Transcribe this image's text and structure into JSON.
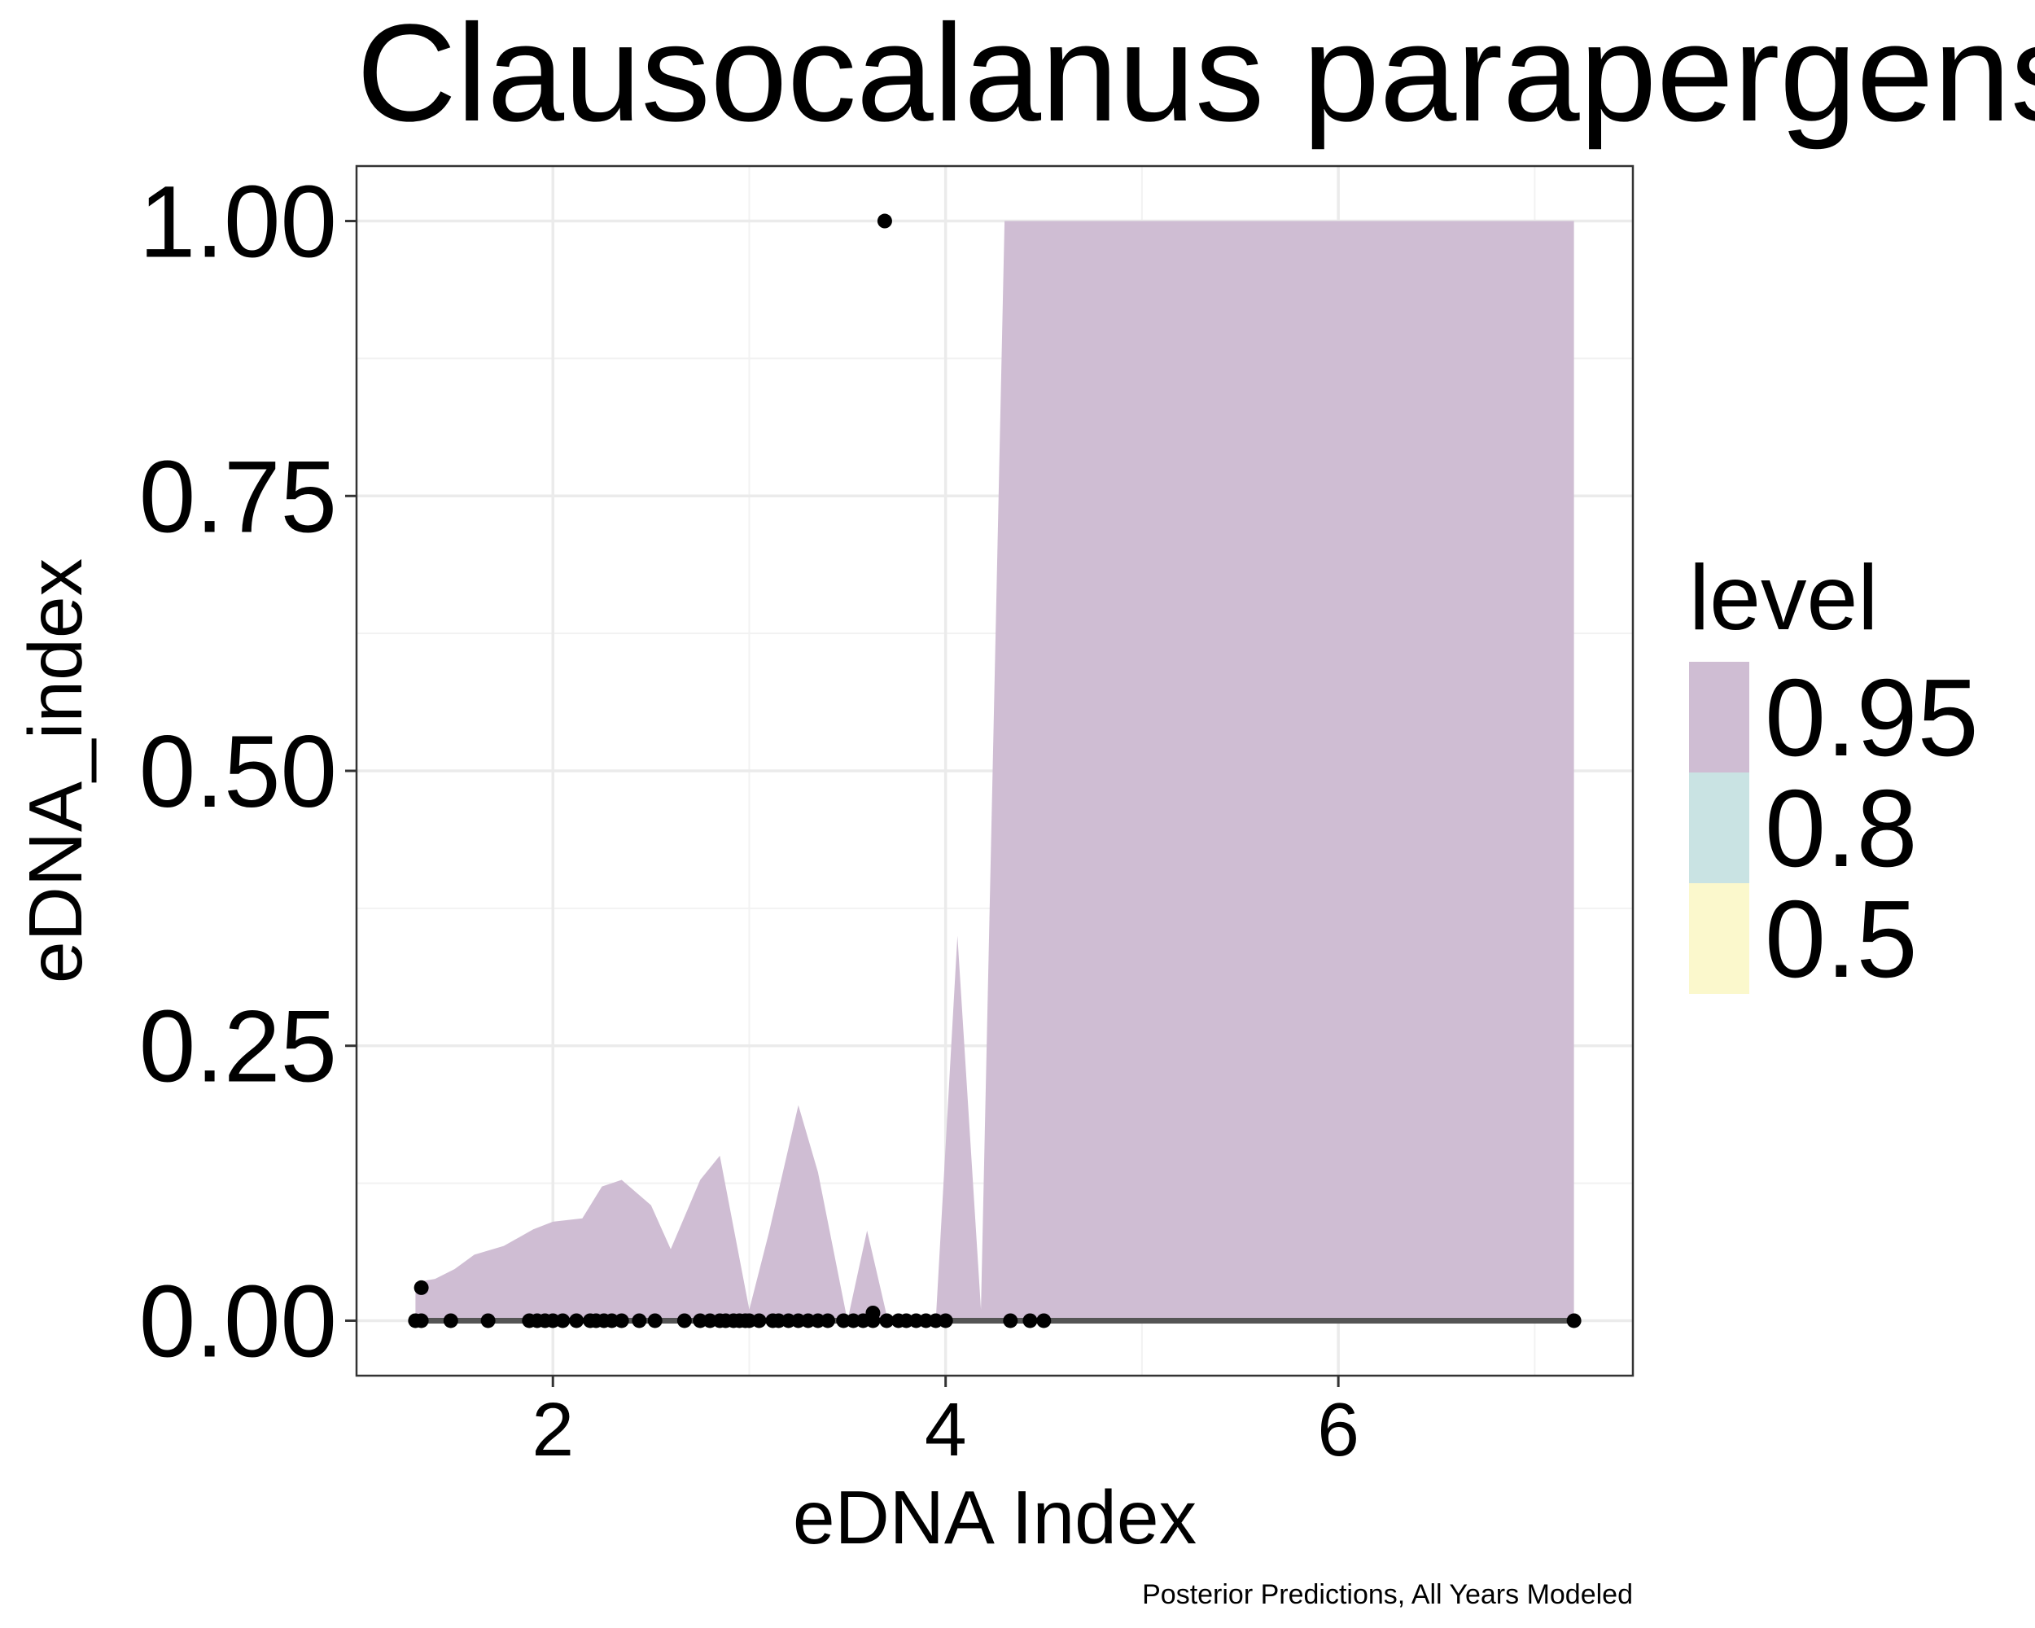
{
  "chart_data": {
    "type": "area",
    "title": "Clausocalanus parapergens",
    "xlabel": "eDNA Index",
    "ylabel": "eDNA_index",
    "caption": "Posterior Predictions, All Years Modeled",
    "xlim": [
      1.0,
      7.5
    ],
    "ylim": [
      -0.05,
      1.05
    ],
    "x_ticks": [
      2,
      4,
      6
    ],
    "x_tick_labels": [
      "2",
      "4",
      "6"
    ],
    "y_ticks": [
      0,
      0.25,
      0.5,
      0.75,
      1.0
    ],
    "y_tick_labels": [
      "0.00",
      "0.25",
      "0.50",
      "0.75",
      "1.00"
    ],
    "grid": true,
    "legend": {
      "title": "level",
      "position": "right",
      "entries": [
        {
          "label": "0.95",
          "color": "#cfbdd3"
        },
        {
          "label": "0.8",
          "color": "#c9e3e3"
        },
        {
          "label": "0.5",
          "color": "#fbf8cc"
        }
      ]
    },
    "band": {
      "level": "0.95",
      "color": "#cfbdd3",
      "upper": [
        [
          1.3,
          0.035
        ],
        [
          1.4,
          0.038
        ],
        [
          1.5,
          0.047
        ],
        [
          1.6,
          0.06
        ],
        [
          1.75,
          0.068
        ],
        [
          1.9,
          0.083
        ],
        [
          2.0,
          0.09
        ],
        [
          2.15,
          0.093
        ],
        [
          2.25,
          0.122
        ],
        [
          2.35,
          0.128
        ],
        [
          2.5,
          0.105
        ],
        [
          2.6,
          0.065
        ],
        [
          2.75,
          0.128
        ],
        [
          2.85,
          0.15
        ],
        [
          3.0,
          0.01
        ],
        [
          3.1,
          0.08
        ],
        [
          3.25,
          0.196
        ],
        [
          3.35,
          0.135
        ],
        [
          3.5,
          0.0
        ],
        [
          3.6,
          0.082
        ],
        [
          3.7,
          0.005
        ],
        [
          3.95,
          0.0
        ],
        [
          4.06,
          0.35
        ],
        [
          4.18,
          0.01
        ],
        [
          4.3,
          1.0
        ],
        [
          7.2,
          1.0
        ]
      ],
      "lower": [
        [
          1.3,
          0.0
        ],
        [
          7.2,
          0.0
        ]
      ]
    },
    "median_line": {
      "color": "#555555",
      "points": [
        [
          1.3,
          0.0
        ],
        [
          7.2,
          0.0
        ]
      ]
    },
    "points": [
      [
        1.33,
        0.03
      ],
      [
        1.3,
        0.0
      ],
      [
        1.33,
        0.0
      ],
      [
        1.48,
        0.0
      ],
      [
        1.67,
        0.0
      ],
      [
        1.88,
        0.0
      ],
      [
        1.92,
        0.0
      ],
      [
        1.96,
        0.0
      ],
      [
        2.0,
        0.0
      ],
      [
        2.05,
        0.0
      ],
      [
        2.12,
        0.0
      ],
      [
        2.19,
        0.0
      ],
      [
        2.22,
        0.0
      ],
      [
        2.26,
        0.0
      ],
      [
        2.3,
        0.0
      ],
      [
        2.35,
        0.0
      ],
      [
        2.44,
        0.0
      ],
      [
        2.52,
        0.0
      ],
      [
        2.67,
        0.0
      ],
      [
        2.75,
        0.0
      ],
      [
        2.8,
        0.0
      ],
      [
        2.85,
        0.0
      ],
      [
        2.88,
        0.0
      ],
      [
        2.92,
        0.0
      ],
      [
        2.95,
        0.0
      ],
      [
        2.98,
        0.0
      ],
      [
        3.0,
        0.0
      ],
      [
        3.05,
        0.0
      ],
      [
        3.12,
        0.0
      ],
      [
        3.15,
        0.0
      ],
      [
        3.2,
        0.0
      ],
      [
        3.25,
        0.0
      ],
      [
        3.3,
        0.0
      ],
      [
        3.35,
        0.0
      ],
      [
        3.4,
        0.0
      ],
      [
        3.48,
        0.0
      ],
      [
        3.53,
        0.0
      ],
      [
        3.58,
        0.0
      ],
      [
        3.63,
        0.007
      ],
      [
        3.63,
        0.0
      ],
      [
        3.69,
        1.0
      ],
      [
        3.7,
        0.0
      ],
      [
        3.76,
        0.0
      ],
      [
        3.8,
        0.0
      ],
      [
        3.85,
        0.0
      ],
      [
        3.9,
        0.0
      ],
      [
        3.95,
        0.0
      ],
      [
        4.0,
        0.0
      ],
      [
        4.33,
        0.0
      ],
      [
        4.43,
        0.0
      ],
      [
        4.5,
        0.0
      ],
      [
        7.2,
        0.0
      ]
    ]
  }
}
